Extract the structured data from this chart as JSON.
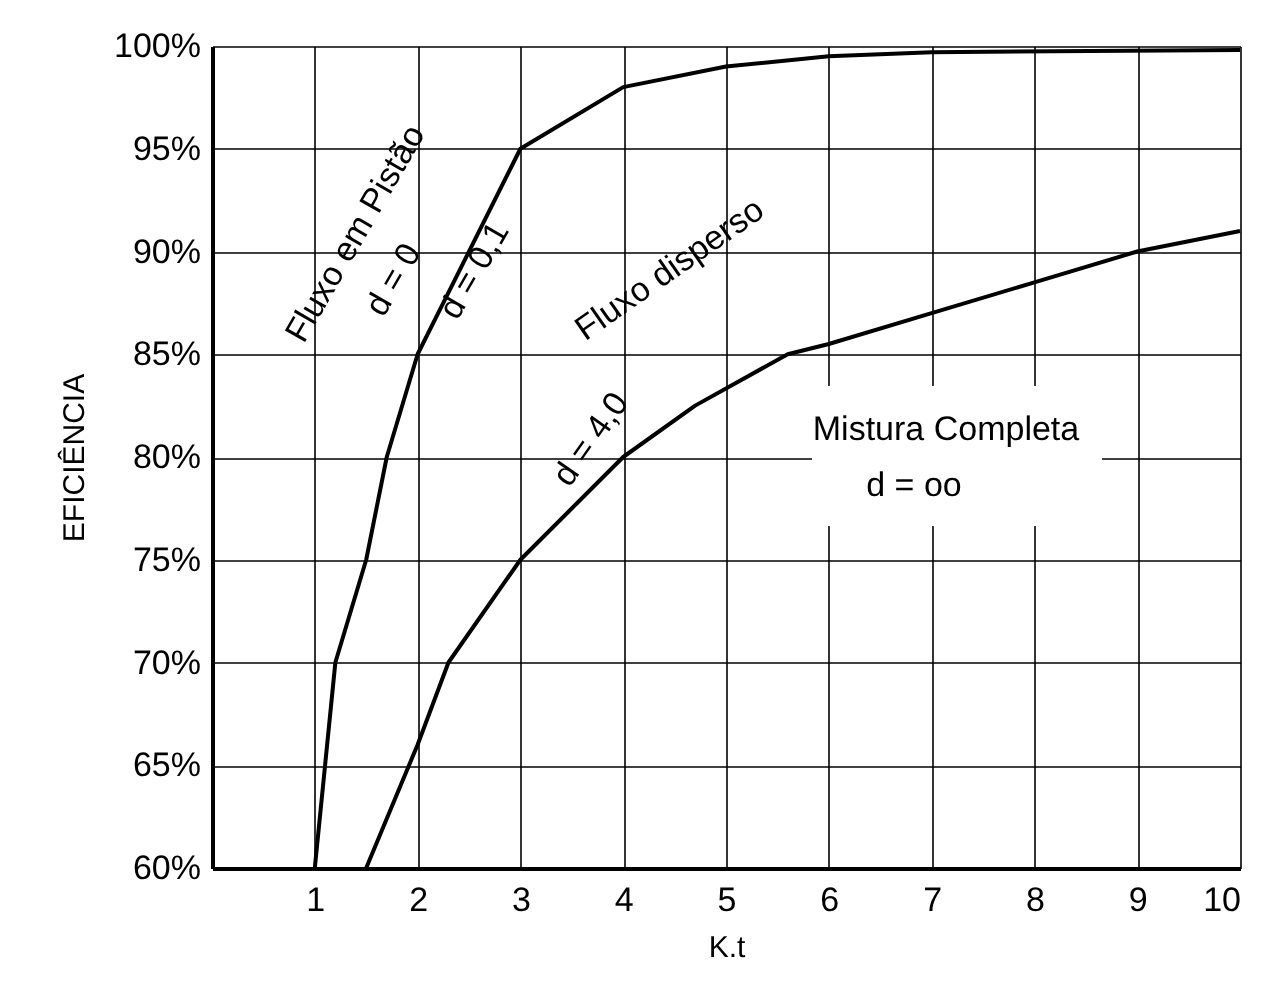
{
  "chart_data": {
    "type": "line",
    "xlabel": "K.t",
    "ylabel": "EFICIÊNCIA",
    "xlim": [
      0,
      10
    ],
    "xticks": [
      1,
      2,
      3,
      4,
      5,
      6,
      7,
      8,
      9,
      10
    ],
    "ylim": [
      60,
      100
    ],
    "yticks": [
      {
        "value": 60,
        "label": "60%"
      },
      {
        "value": 65,
        "label": "65%"
      },
      {
        "value": 70,
        "label": "70%"
      },
      {
        "value": 75,
        "label": "75%"
      },
      {
        "value": 80,
        "label": "80%"
      },
      {
        "value": 85,
        "label": "85%"
      },
      {
        "value": 90,
        "label": "90%"
      },
      {
        "value": 95,
        "label": "95%"
      },
      {
        "value": 100,
        "label": "100%"
      }
    ],
    "grid": true,
    "marker": "none",
    "line_style": "solid",
    "legend": false,
    "series": [
      {
        "name": "d = 0,1",
        "color": "#000000",
        "x": [
          1,
          1.2,
          1.5,
          1.7,
          2,
          2.3,
          3,
          4,
          5,
          6,
          7,
          10
        ],
        "values": [
          60,
          70,
          75,
          80,
          85,
          88,
          95,
          98,
          99,
          99.5,
          99.7,
          99.8
        ]
      },
      {
        "name": "d = 4,0",
        "color": "#000000",
        "x": [
          1.5,
          2,
          2.3,
          3,
          4,
          4.7,
          5.6,
          6,
          7,
          8,
          9,
          10
        ],
        "values": [
          60,
          66,
          70,
          75,
          80,
          82.5,
          85,
          85.5,
          87,
          88.5,
          90,
          91
        ]
      }
    ],
    "annotations": [
      "Fluxo em Pistão",
      "d = 0",
      "Fluxo disperso",
      "Mistura Completa",
      "d = oo"
    ]
  }
}
